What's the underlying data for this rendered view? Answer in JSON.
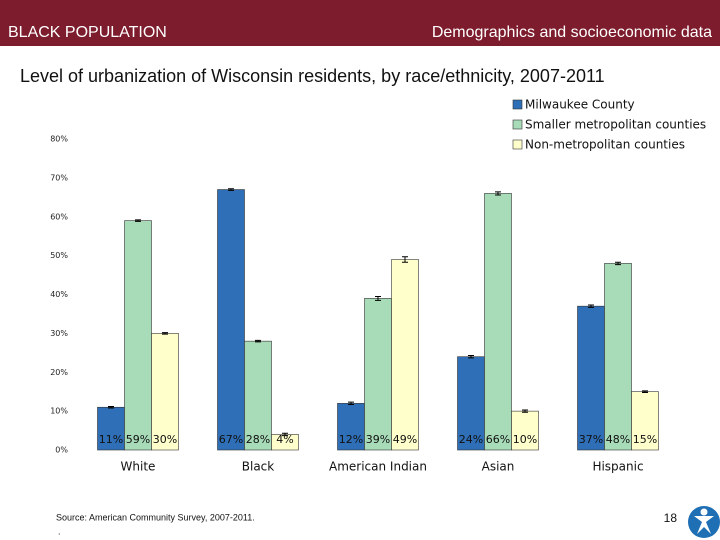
{
  "header": {
    "left": "BLACK POPULATION",
    "right": "Demographics and socioeconomic data"
  },
  "chart_data": {
    "type": "bar",
    "title": "Level of urbanization of Wisconsin residents, by race/ethnicity, 2007-2011",
    "categories": [
      "White",
      "Black",
      "American Indian",
      "Asian",
      "Hispanic"
    ],
    "series": [
      {
        "name": "Milwaukee County",
        "color": "#2e6fb7",
        "values": [
          11,
          67,
          12,
          24,
          37
        ],
        "value_labels": [
          "11%",
          "67%",
          "12%",
          "24%",
          "37%"
        ],
        "errors": [
          0.2,
          0.2,
          0.3,
          0.3,
          0.3
        ]
      },
      {
        "name": "Smaller metropolitan counties",
        "color": "#a8dcb8",
        "values": [
          59,
          28,
          39,
          66,
          48
        ],
        "value_labels": [
          "59%",
          "28%",
          "39%",
          "66%",
          "48%"
        ],
        "errors": [
          0.2,
          0.2,
          0.5,
          0.4,
          0.3
        ]
      },
      {
        "name": "Non-metropolitan counties",
        "color": "#ffffcc",
        "values": [
          30,
          4,
          49,
          10,
          15
        ],
        "value_labels": [
          "30%",
          "4%",
          "49%",
          "10%",
          "15%"
        ],
        "errors": [
          0.2,
          0.3,
          0.7,
          0.3,
          0.2
        ]
      }
    ],
    "ylim": [
      0,
      80
    ],
    "yticks": [
      {
        "value": 0,
        "label": "0%"
      },
      {
        "value": 10,
        "label": "10%"
      },
      {
        "value": 20,
        "label": "20%"
      },
      {
        "value": 30,
        "label": "30%"
      },
      {
        "value": 40,
        "label": "40%"
      },
      {
        "value": 50,
        "label": "50%"
      },
      {
        "value": 60,
        "label": "60%"
      },
      {
        "value": 70,
        "label": "70%"
      },
      {
        "value": 80,
        "label": "80%"
      }
    ],
    "legend": "top-right"
  },
  "footer": {
    "source": "Source: American Community Survey, 2007-2011.",
    "note": ".",
    "page": "18"
  }
}
